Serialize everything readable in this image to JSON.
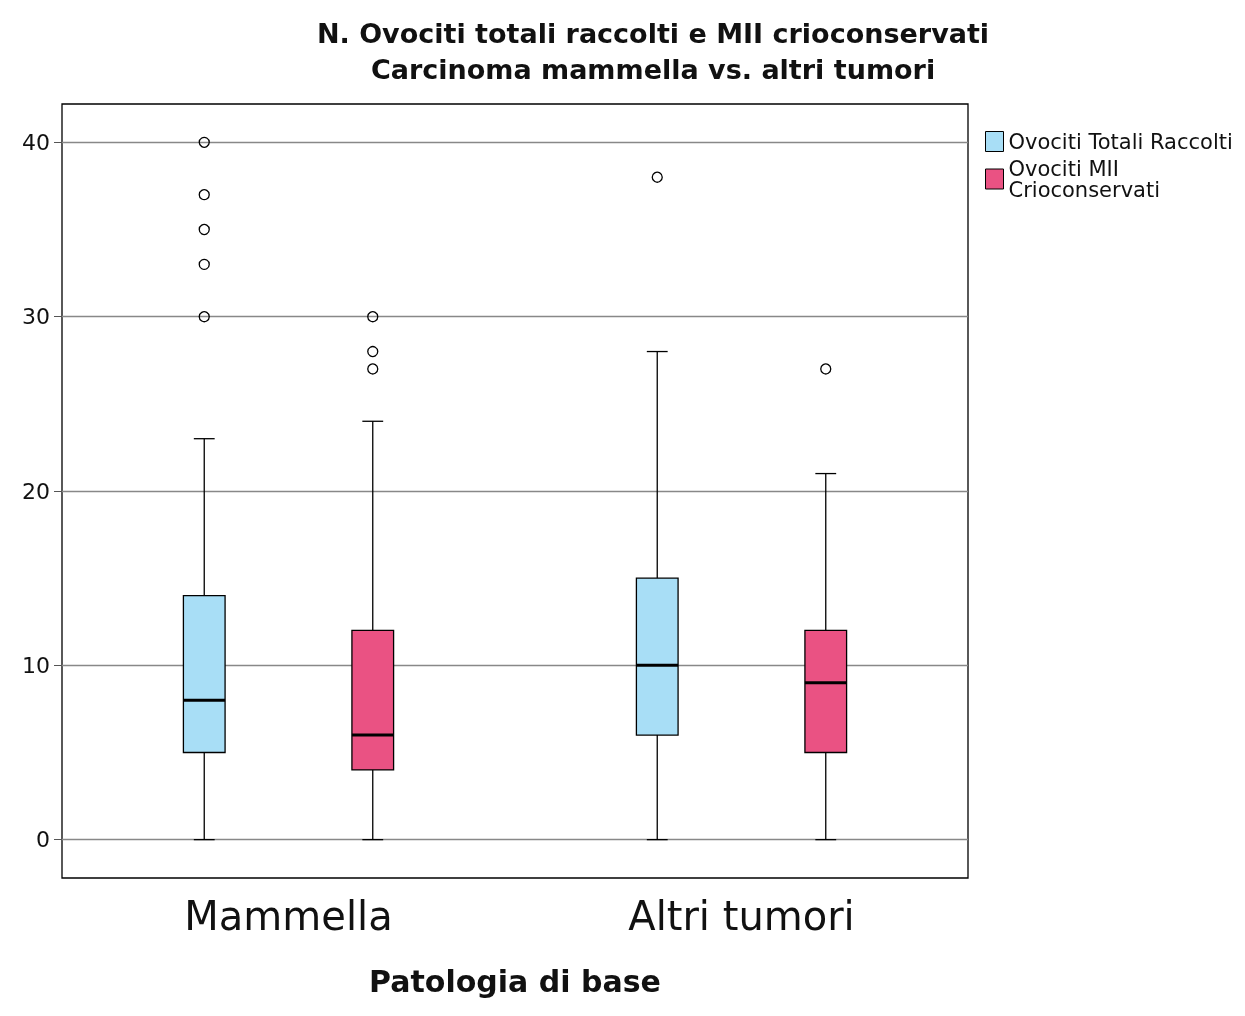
{
  "chart_data": {
    "type": "box",
    "title": "N. Ovociti totali raccolti e MII crioconservati\nCarcinoma mammella vs. altri tumori",
    "xlabel": "Patologia di base",
    "categories": [
      "Mammella",
      "Altri tumori"
    ],
    "series": [
      {
        "name": "Ovociti Totali Raccolti",
        "color": "#a8def6",
        "boxes": [
          {
            "low": 0,
            "q1": 5,
            "median": 8,
            "q3": 14,
            "high": 23,
            "outliers": [
              40,
              37,
              35,
              33,
              30
            ]
          },
          {
            "low": 0,
            "q1": 6,
            "median": 10,
            "q3": 15,
            "high": 28,
            "outliers": [
              38
            ]
          }
        ]
      },
      {
        "name": "Ovociti MII Crioconservati",
        "color": "#ea5283",
        "boxes": [
          {
            "low": 0,
            "q1": 4,
            "median": 6,
            "q3": 12,
            "high": 24,
            "outliers": [
              30,
              28,
              27
            ]
          },
          {
            "low": 0,
            "q1": 5,
            "median": 9,
            "q3": 12,
            "high": 21,
            "outliers": [
              27
            ]
          }
        ]
      }
    ],
    "ylim": [
      -2.2,
      42.2
    ],
    "yticks": [
      0,
      10,
      20,
      30,
      40
    ],
    "grid": "y",
    "legend": "top right",
    "marker": "circle"
  }
}
